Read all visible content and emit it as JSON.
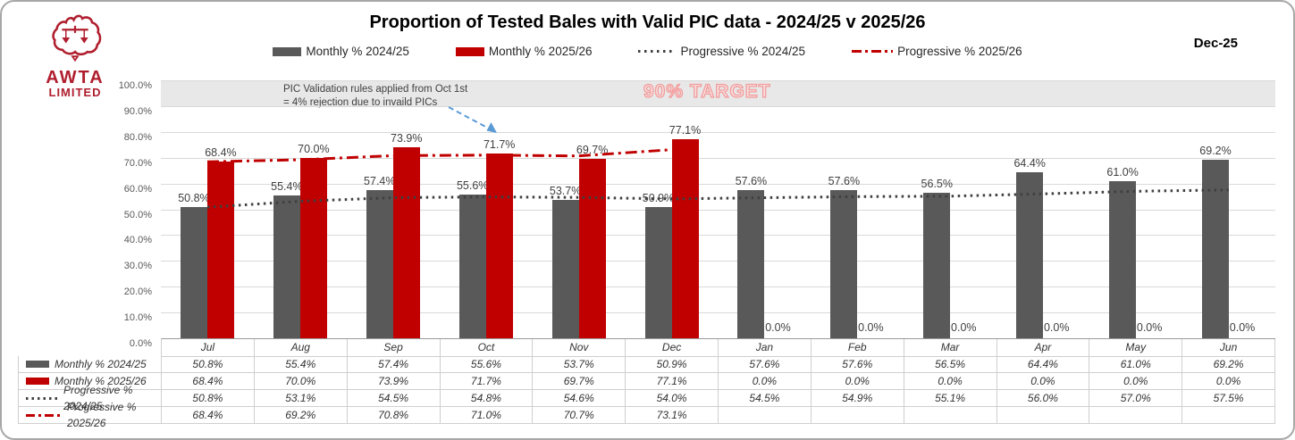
{
  "header": {
    "title": "Proportion of Tested Bales with Valid PIC data - 2024/25 v 2025/26",
    "date_label": "Dec-25",
    "logo_line1": "AWTA",
    "logo_line2": "LIMITED"
  },
  "colors": {
    "bar_2024_25": "#595959",
    "bar_2025_26": "#C00000",
    "progressive_2024_25": "#404040",
    "progressive_2025_26": "#C00000",
    "target_band": "#e8e8e8",
    "arrow": "#5B9BD5",
    "logo_red": "#b01e2e"
  },
  "chart_data": {
    "type": "bar",
    "title": "Proportion of Tested Bales with Valid PIC data - 2024/25 v 2025/26",
    "categories": [
      "Jul",
      "Aug",
      "Sep",
      "Oct",
      "Nov",
      "Dec",
      "Jan",
      "Feb",
      "Mar",
      "Apr",
      "May",
      "Jun"
    ],
    "series": [
      {
        "name": "Monthly % 2024/25",
        "type": "bar",
        "color": "#595959",
        "values": [
          50.8,
          55.4,
          57.4,
          55.6,
          53.7,
          50.9,
          57.6,
          57.6,
          56.5,
          64.4,
          61.0,
          69.2
        ]
      },
      {
        "name": "Monthly % 2025/26",
        "type": "bar",
        "color": "#C00000",
        "values": [
          68.4,
          70.0,
          73.9,
          71.7,
          69.7,
          77.1,
          0.0,
          0.0,
          0.0,
          0.0,
          0.0,
          0.0
        ]
      },
      {
        "name": "Progressive % 2024/25",
        "type": "line-dotted",
        "color": "#404040",
        "values": [
          50.8,
          53.1,
          54.5,
          54.8,
          54.6,
          54.0,
          54.5,
          54.9,
          55.1,
          56.0,
          57.0,
          57.5
        ]
      },
      {
        "name": "Progressive % 2025/26",
        "type": "line-dashdot",
        "color": "#C00000",
        "values": [
          68.4,
          69.2,
          70.8,
          71.0,
          70.7,
          73.1,
          null,
          null,
          null,
          null,
          null,
          null
        ]
      }
    ],
    "ylim": [
      0,
      100
    ],
    "y_ticks": [
      "0.0%",
      "10.0%",
      "20.0%",
      "30.0%",
      "40.0%",
      "50.0%",
      "60.0%",
      "70.0%",
      "80.0%",
      "90.0%",
      "100.0%"
    ],
    "grid": true,
    "legend_position": "top",
    "target_band": [
      90,
      100
    ],
    "target_label": "90% TARGET",
    "annotation": {
      "line1": "PIC Validation rules applied from Oct 1st",
      "line2": "= 4% rejection due to invaild PICs"
    }
  },
  "table": {
    "rows": [
      {
        "key": "bar",
        "color": "#595959",
        "label": "Monthly % 2024/25",
        "cells": [
          "50.8%",
          "55.4%",
          "57.4%",
          "55.6%",
          "53.7%",
          "50.9%",
          "57.6%",
          "57.6%",
          "56.5%",
          "64.4%",
          "61.0%",
          "69.2%"
        ]
      },
      {
        "key": "bar",
        "color": "#C00000",
        "label": "Monthly % 2025/26",
        "cells": [
          "68.4%",
          "70.0%",
          "73.9%",
          "71.7%",
          "69.7%",
          "77.1%",
          "0.0%",
          "0.0%",
          "0.0%",
          "0.0%",
          "0.0%",
          "0.0%"
        ]
      },
      {
        "key": "dotted",
        "color": "#404040",
        "label": "Progressive % 2024/25",
        "cells": [
          "50.8%",
          "53.1%",
          "54.5%",
          "54.8%",
          "54.6%",
          "54.0%",
          "54.5%",
          "54.9%",
          "55.1%",
          "56.0%",
          "57.0%",
          "57.5%"
        ]
      },
      {
        "key": "dashdot",
        "color": "#C00000",
        "label": "Progressive % 2025/26",
        "cells": [
          "68.4%",
          "69.2%",
          "70.8%",
          "71.0%",
          "70.7%",
          "73.1%",
          "",
          "",
          "",
          "",
          "",
          ""
        ]
      }
    ]
  }
}
